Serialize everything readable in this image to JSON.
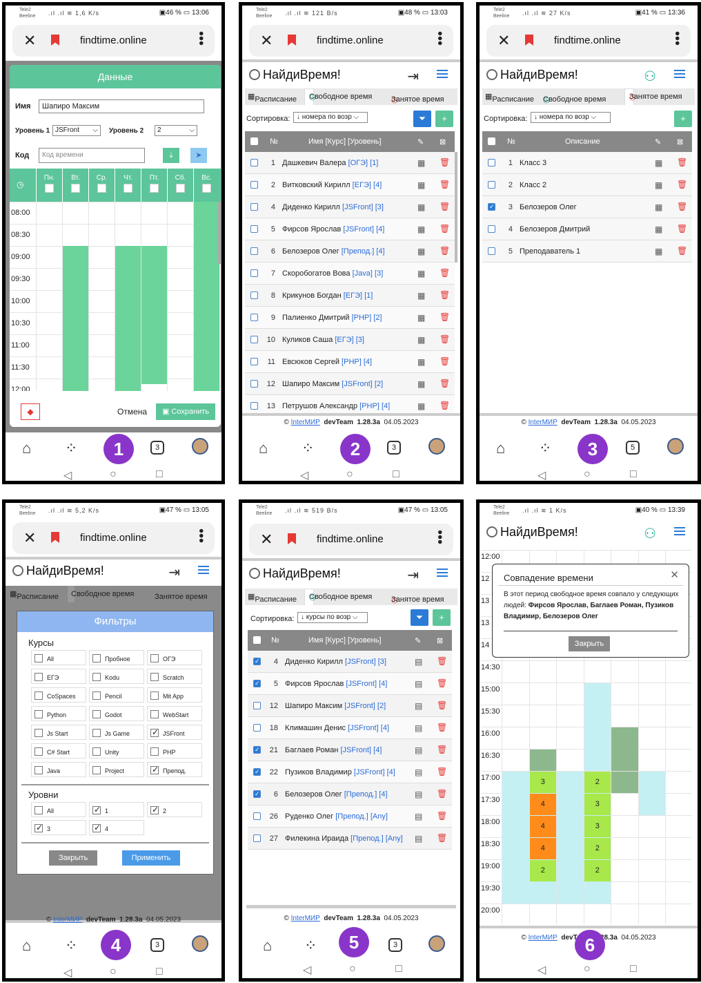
{
  "status_bars": [
    {
      "carrier1": "Tele2",
      "carrier2": "Beeline",
      "speed": "1,6 K/s",
      "battery": "46 %",
      "time": "13:06"
    },
    {
      "carrier1": "Tele2",
      "carrier2": "Beeline",
      "speed": "121 B/s",
      "battery": "48 %",
      "time": "13:03"
    },
    {
      "carrier1": "Tele2",
      "carrier2": "Beeline",
      "speed": "27 K/s",
      "battery": "41 %",
      "time": "13:36"
    },
    {
      "carrier1": "Tele2",
      "carrier2": "Beeline",
      "speed": "5,2 K/s",
      "battery": "47 %",
      "time": "13:05"
    },
    {
      "carrier1": "Tele2",
      "carrier2": "Beeline",
      "speed": "519 B/s",
      "battery": "47 %",
      "time": "13:05"
    },
    {
      "carrier1": "Tele2",
      "carrier2": "Beeline",
      "speed": "1 K/s",
      "battery": "40 %",
      "time": "13:39"
    }
  ],
  "browser": {
    "url": "findtime.online"
  },
  "app": {
    "title": "НайдиВремя!"
  },
  "tabs": {
    "schedule": "Расписание",
    "free": "Свободное время",
    "busy": "Занятое время"
  },
  "footer": {
    "copy": "©",
    "link": "InterМИР",
    "team": "devTeam",
    "version": "1.28.3a",
    "date": "04.05.2023"
  },
  "badges": [
    "1",
    "2",
    "3",
    "4",
    "5",
    "6"
  ],
  "nav_counts": [
    "3",
    "3",
    "5",
    "3",
    "3",
    ""
  ],
  "panel1": {
    "header": "Данные",
    "name_label": "Имя",
    "name_value": "Шапиро Максим",
    "level1_label": "Уровень 1",
    "level1_value": "JSFront",
    "level2_label": "Уровень 2",
    "level2_value": "2",
    "code_label": "Код",
    "code_placeholder": "Код времени",
    "days": [
      "Пн.",
      "Вт.",
      "Ср.",
      "Чт.",
      "Пт.",
      "Сб.",
      "Вс."
    ],
    "times": [
      "08:00",
      "08:30",
      "09:00",
      "09:30",
      "10:00",
      "10:30",
      "11:00",
      "11:30",
      "12:00"
    ],
    "cancel": "Отмена",
    "save": "Сохранить"
  },
  "panel2": {
    "sort_label": "Сортировка:",
    "sort_value": "↓ номера по возр",
    "col_num": "№",
    "col_name": "Имя [Курс] [Уровень]",
    "rows": [
      {
        "n": "1",
        "name": "Дашкевич Валера",
        "course": "[ОГЭ]",
        "level": "[1]"
      },
      {
        "n": "2",
        "name": "Витковский Кирилл",
        "course": "[ЕГЭ]",
        "level": "[4]"
      },
      {
        "n": "4",
        "name": "Диденко Кирилл",
        "course": "[JSFront]",
        "level": "[3]"
      },
      {
        "n": "5",
        "name": "Фирсов Ярослав",
        "course": "[JSFront]",
        "level": "[4]"
      },
      {
        "n": "6",
        "name": "Белозеров Олег",
        "course": "[Препод.]",
        "level": "[4]"
      },
      {
        "n": "7",
        "name": "Скоробогатов Вова",
        "course": "[Java]",
        "level": "[3]"
      },
      {
        "n": "8",
        "name": "Крикунов Богдан",
        "course": "[ЕГЭ]",
        "level": "[1]"
      },
      {
        "n": "9",
        "name": "Палиенко Дмитрий",
        "course": "[PHP]",
        "level": "[2]"
      },
      {
        "n": "10",
        "name": "Куликов Саша",
        "course": "[ЕГЭ]",
        "level": "[3]"
      },
      {
        "n": "11",
        "name": "Евсюков Сергей",
        "course": "[PHP]",
        "level": "[4]"
      },
      {
        "n": "12",
        "name": "Шапиро Максим",
        "course": "[JSFront]",
        "level": "[2]"
      },
      {
        "n": "13",
        "name": "Петрушов Александр",
        "course": "[PHP]",
        "level": "[4]"
      }
    ]
  },
  "panel3": {
    "sort_label": "Сортировка:",
    "sort_value": "↓ номера по возр",
    "col_num": "№",
    "col_desc": "Описание",
    "rows": [
      {
        "n": "1",
        "name": "Класс 3",
        "checked": false
      },
      {
        "n": "2",
        "name": "Класс 2",
        "checked": false
      },
      {
        "n": "3",
        "name": "Белозеров Олег",
        "checked": true
      },
      {
        "n": "4",
        "name": "Белозеров Дмитрий",
        "checked": false
      },
      {
        "n": "5",
        "name": "Преподаватель 1",
        "checked": false
      }
    ]
  },
  "panel4": {
    "title": "Фильтры",
    "courses_label": "Курсы",
    "levels_label": "Уровни",
    "courses": [
      {
        "t": "All",
        "on": false
      },
      {
        "t": "Пробное",
        "on": false
      },
      {
        "t": "ОГЭ",
        "on": false
      },
      {
        "t": "ЕГЭ",
        "on": false
      },
      {
        "t": "Kodu",
        "on": false
      },
      {
        "t": "Scratch",
        "on": false
      },
      {
        "t": "CoSpaces",
        "on": false
      },
      {
        "t": "Pencil",
        "on": false
      },
      {
        "t": "Mit App",
        "on": false
      },
      {
        "t": "Python",
        "on": false
      },
      {
        "t": "Godot",
        "on": false
      },
      {
        "t": "WebStart",
        "on": false
      },
      {
        "t": "Js Start",
        "on": false
      },
      {
        "t": "Js Game",
        "on": false
      },
      {
        "t": "JSFront",
        "on": true
      },
      {
        "t": "C# Start",
        "on": false
      },
      {
        "t": "Unity",
        "on": false
      },
      {
        "t": "PHP",
        "on": false
      },
      {
        "t": "Java",
        "on": false
      },
      {
        "t": "Project",
        "on": false
      },
      {
        "t": "Препод.",
        "on": true
      }
    ],
    "levels": [
      {
        "t": "All",
        "on": false
      },
      {
        "t": "1",
        "on": true
      },
      {
        "t": "2",
        "on": true
      },
      {
        "t": "3",
        "on": true
      },
      {
        "t": "4",
        "on": true
      }
    ],
    "close": "Закрыть",
    "apply": "Применить"
  },
  "panel5": {
    "sort_label": "Сортировка:",
    "sort_value": "↓ курсы по возр",
    "col_num": "№",
    "col_name": "Имя [Курс] [Уровень]",
    "rows": [
      {
        "n": "4",
        "name": "Диденко Кирилл",
        "course": "[JSFront]",
        "level": "[3]",
        "checked": true
      },
      {
        "n": "5",
        "name": "Фирсов Ярослав",
        "course": "[JSFront]",
        "level": "[4]",
        "checked": true
      },
      {
        "n": "12",
        "name": "Шапиро Максим",
        "course": "[JSFront]",
        "level": "[2]",
        "checked": false
      },
      {
        "n": "18",
        "name": "Климашин Денис",
        "course": "[JSFront]",
        "level": "[4]",
        "checked": false
      },
      {
        "n": "21",
        "name": "Баглаев Роман",
        "course": "[JSFront]",
        "level": "[4]",
        "checked": true
      },
      {
        "n": "22",
        "name": "Пузиков Владимир",
        "course": "[JSFront]",
        "level": "[4]",
        "checked": true
      },
      {
        "n": "6",
        "name": "Белозеров Олег",
        "course": "[Препод.]",
        "level": "[4]",
        "checked": true
      },
      {
        "n": "26",
        "name": "Руденко Олег",
        "course": "[Препод.]",
        "level": "[Any]",
        "checked": false
      },
      {
        "n": "27",
        "name": "Филекина Ираида",
        "course": "[Препод.]",
        "level": "[Any]",
        "checked": false
      }
    ]
  },
  "panel6": {
    "times": [
      "12:00",
      "12",
      "13",
      "13",
      "14",
      "14:30",
      "15:00",
      "15:30",
      "16:00",
      "16:30",
      "17:00",
      "17:30",
      "18:00",
      "18:30",
      "19:00",
      "19:30",
      "20:00"
    ],
    "dlg_title": "Совпадение времени",
    "dlg_text": "В этот период свободное время совпало у следующих людей:",
    "dlg_names": "Фирсов Ярослав, Баглаев Роман, Пузиков Владимир, Белозеров Олег",
    "dlg_close": "Закрыть",
    "col2_counts": [
      "3",
      "4",
      "4",
      "4",
      "2"
    ],
    "col4_counts": [
      "2",
      "3",
      "3",
      "2",
      "2"
    ]
  },
  "colors": {
    "green": "#6bd49a",
    "teal_header": "#5cc59a",
    "blue": "#2b7bd6",
    "purple_badge": "#8a35c9",
    "orange": "#ff8c1a",
    "lime": "#a8e84a",
    "light_cyan": "#c4f0f4",
    "dark_green": "#8db88d"
  }
}
